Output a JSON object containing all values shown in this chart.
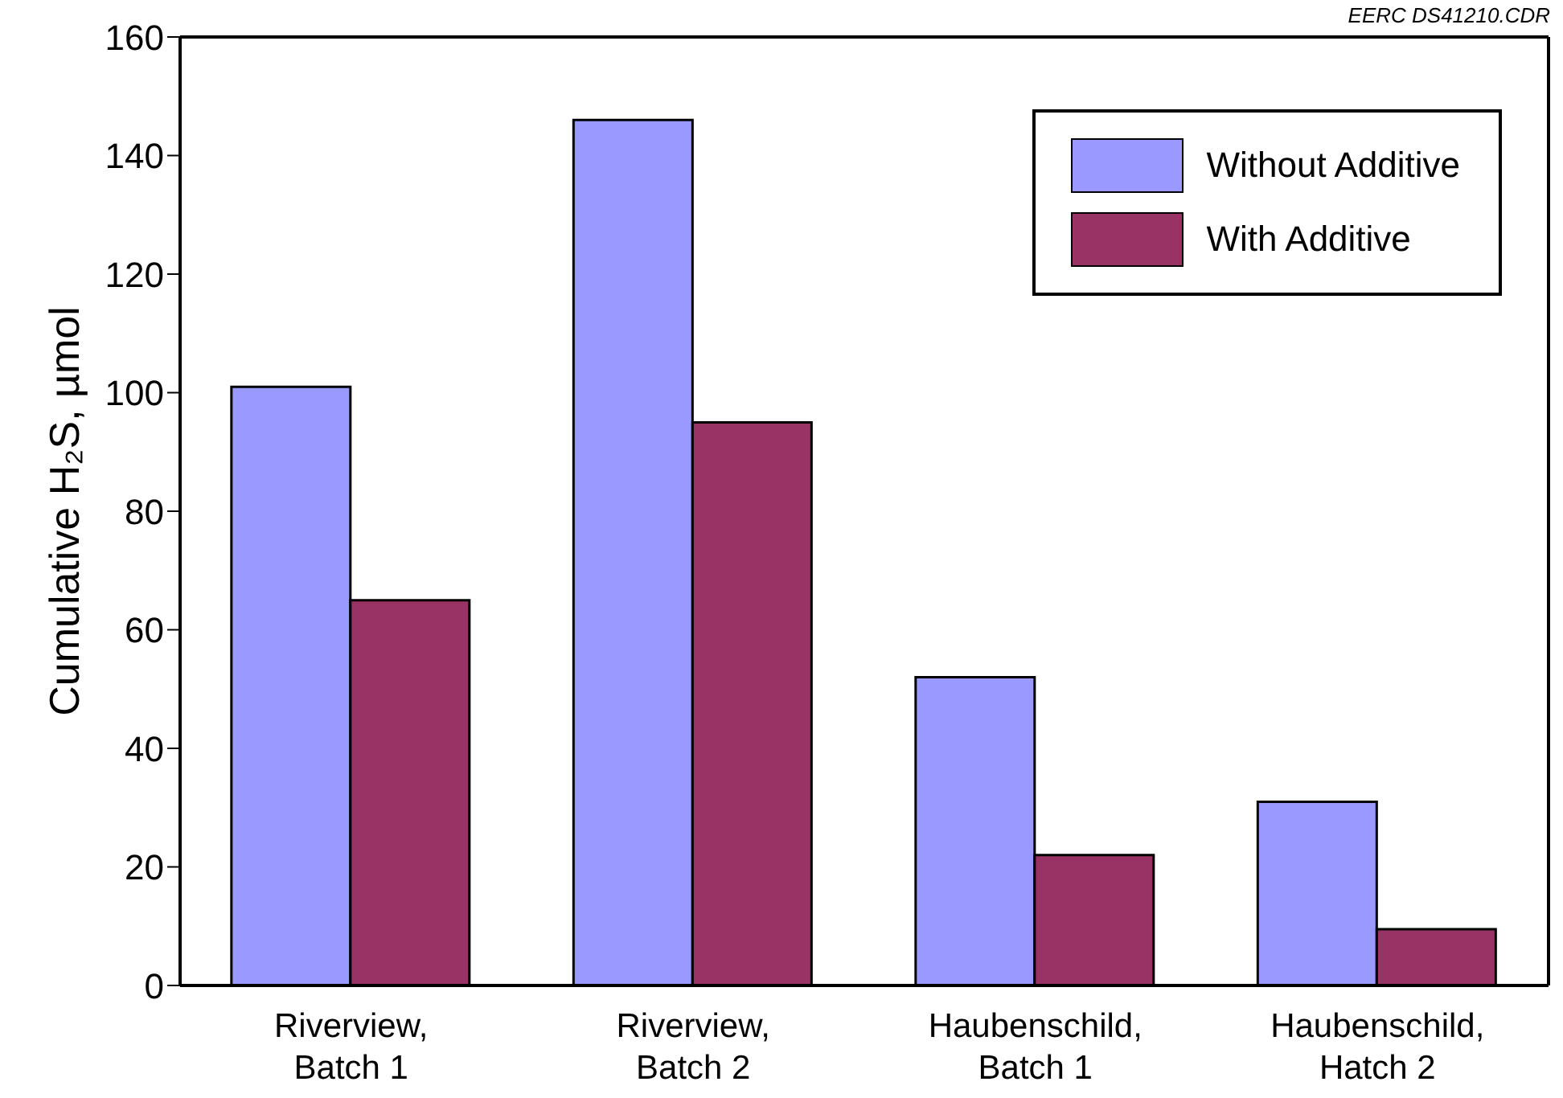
{
  "chart_data": {
    "type": "bar",
    "ylabel": "Cumulative H₂S, µmol",
    "categories": [
      "Riverview,\nBatch 1",
      "Riverview,\nBatch 2",
      "Haubenschild,\nBatch 1",
      "Haubenschild,\nHatch 2"
    ],
    "series": [
      {
        "name": "Without Additive",
        "color": "#9999ff",
        "values": [
          101,
          146,
          52,
          31
        ]
      },
      {
        "name": "With Additive",
        "color": "#993366",
        "values": [
          65,
          95,
          22,
          9.5
        ]
      }
    ],
    "ylim": [
      0,
      160
    ],
    "yticks": [
      0,
      20,
      40,
      60,
      80,
      100,
      120,
      140,
      160
    ],
    "legend": "top right",
    "annotations": [
      "EERC DS41210.CDR"
    ]
  }
}
